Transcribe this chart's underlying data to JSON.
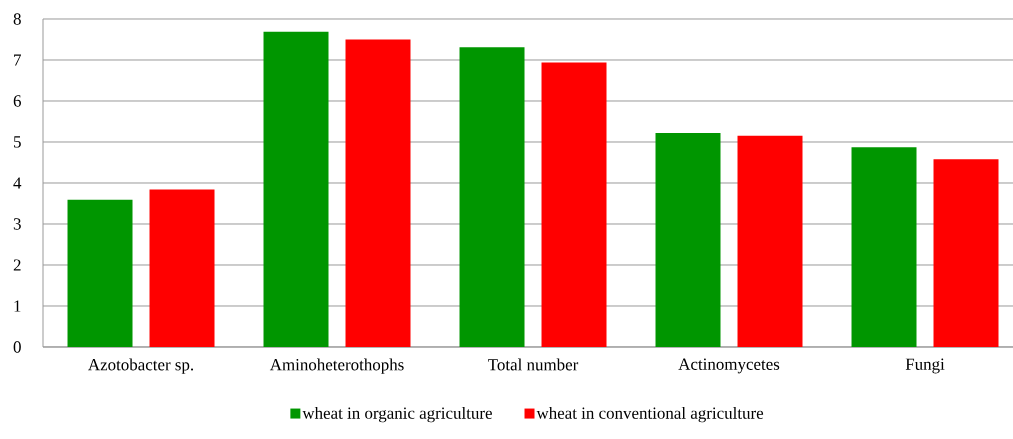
{
  "chart_data": {
    "type": "bar",
    "categories": [
      "Azotobacter sp.",
      "Aminoheterothophs",
      "Total number",
      "Actinomycetes",
      "Fungi"
    ],
    "series": [
      {
        "name": "wheat in organic agriculture",
        "color": "#009600",
        "values": [
          3.59,
          7.69,
          7.31,
          5.22,
          4.87
        ]
      },
      {
        "name": "wheat in conventional agriculture",
        "color": "#ff0000",
        "values": [
          3.84,
          7.5,
          6.94,
          5.15,
          4.58
        ]
      }
    ],
    "ylim": [
      0,
      8
    ],
    "yticks": [
      0,
      1,
      2,
      3,
      4,
      5,
      6,
      7,
      8
    ],
    "grid": "y",
    "legend": "bottom"
  }
}
